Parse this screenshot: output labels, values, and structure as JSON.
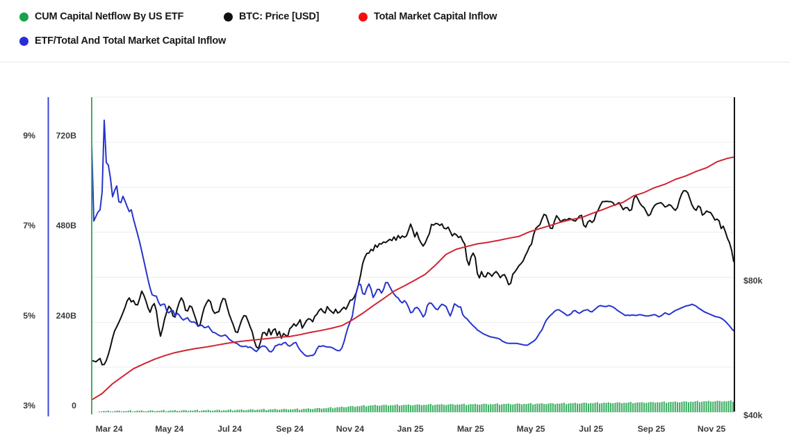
{
  "legend": {
    "rows": [
      {
        "items": [
          {
            "series": "etf_netflow",
            "label": "CUM Capital Netflow By US ETF",
            "color": "#17a34a"
          },
          {
            "series": "btc_price",
            "label": "BTC: Price [USD]",
            "color": "#111111"
          },
          {
            "series": "total_inflow",
            "label": "Total Market Capital Inflow",
            "color": "#f40f0f"
          }
        ]
      },
      {
        "items": [
          {
            "series": "etf_ratio",
            "label": "ETF/Total And Total Market Capital Inflow",
            "color": "#2b2bd9"
          }
        ]
      }
    ]
  },
  "chart_data": {
    "type": "line",
    "title": "",
    "layout_hints": {
      "grid": "horizontal",
      "legend_position": "top",
      "background": "#ffffff",
      "grid_color": "#ededed"
    },
    "x_axis": {
      "unit": "months since Jan 2024 (Jan24=0)",
      "range": [
        1.42,
        22.76
      ],
      "ticks": [
        {
          "m": 2,
          "label": "Mar 24"
        },
        {
          "m": 4,
          "label": "May 24"
        },
        {
          "m": 6,
          "label": "Jul 24"
        },
        {
          "m": 8,
          "label": "Sep 24"
        },
        {
          "m": 10,
          "label": "Nov 24"
        },
        {
          "m": 12,
          "label": "Jan 25"
        },
        {
          "m": 14,
          "label": "Mar 25"
        },
        {
          "m": 16,
          "label": "May 25"
        },
        {
          "m": 18,
          "label": "Jul 25"
        },
        {
          "m": 20,
          "label": "Sep 25"
        },
        {
          "m": 22,
          "label": "Nov 25"
        }
      ]
    },
    "y_axes": {
      "percent": {
        "side": "far-left",
        "axis_color": "#3a45d6",
        "range": [
          3,
          10
        ],
        "grid_values": [
          4,
          5,
          6,
          7,
          8,
          9,
          10
        ],
        "ticks": [
          {
            "v": 3,
            "label": "3%"
          },
          {
            "v": 5,
            "label": "5%"
          },
          {
            "v": 7,
            "label": "7%"
          },
          {
            "v": 9,
            "label": "9%"
          }
        ]
      },
      "billions": {
        "side": "left",
        "axis_color": "#3eae63",
        "range": [
          0,
          840
        ],
        "ticks": [
          {
            "v": 0,
            "label": "0"
          },
          {
            "v": 240,
            "label": "240B"
          },
          {
            "v": 480,
            "label": "480B"
          },
          {
            "v": 720,
            "label": "720B"
          }
        ]
      },
      "usd": {
        "side": "right",
        "axis_color": "#111111",
        "range": [
          39.6,
          133.5
        ],
        "ticks": [
          {
            "v": 40,
            "label": "$40k"
          },
          {
            "v": 80,
            "label": "$80k"
          }
        ]
      }
    },
    "draw_order": [
      "btc_price",
      "etf_ratio",
      "total_inflow"
    ],
    "series": [
      {
        "id": "etf_netflow",
        "name": "CUM Capital Netflow By US ETF",
        "type": "bar",
        "axis": "billions",
        "color": "#3eae63",
        "cumulative_checkpoints_B": [
          [
            1.6,
            2.8
          ],
          [
            3.0,
            3.7
          ],
          [
            4.4,
            4.6
          ],
          [
            5.8,
            5.5
          ],
          [
            7.1,
            7.4
          ],
          [
            8.3,
            8.3
          ],
          [
            9.2,
            11.1
          ],
          [
            9.9,
            14.8
          ],
          [
            10.8,
            18.5
          ],
          [
            11.8,
            19.4
          ],
          [
            12.7,
            20.3
          ],
          [
            14.1,
            21.2
          ],
          [
            15.5,
            22.2
          ],
          [
            16.8,
            23.1
          ],
          [
            18.2,
            24.9
          ],
          [
            19.6,
            25.8
          ],
          [
            21.0,
            27.7
          ],
          [
            22.1,
            29.5
          ],
          [
            22.74,
            29.5
          ]
        ]
      },
      {
        "id": "btc_price",
        "name": "BTC: Price [USD]",
        "type": "line",
        "axis": "usd",
        "color": "#0f0f0f",
        "x_start_month": 1.42,
        "x_step_month": 0.0692,
        "values": [
          55.8,
          55.6,
          55.4,
          55.9,
          56.4,
          54.5,
          54.6,
          55.8,
          57.6,
          59.9,
          62.5,
          64.6,
          65.8,
          67.1,
          68.5,
          70.0,
          71.6,
          73.5,
          74.4,
          73.2,
          73.6,
          72.4,
          72.3,
          74.2,
          76.4,
          75.2,
          73.5,
          71.4,
          70.1,
          71.9,
          72.7,
          70.6,
          66.1,
          63.0,
          65.3,
          68.2,
          70.2,
          71.9,
          71.2,
          69.0,
          68.7,
          71.1,
          73.1,
          74.4,
          73.3,
          70.7,
          70.5,
          72.0,
          71.7,
          69.8,
          68.0,
          66.0,
          66.4,
          69.2,
          71.5,
          72.8,
          73.8,
          73.2,
          70.8,
          69.8,
          70.1,
          70.3,
          72.7,
          74.2,
          74.0,
          71.6,
          69.4,
          67.8,
          66.2,
          64.3,
          64.1,
          66.1,
          67.9,
          69.1,
          69.0,
          67.5,
          65.8,
          64.3,
          61.6,
          59.8,
          59.4,
          61.3,
          64.0,
          64.1,
          63.2,
          65.2,
          63.4,
          64.8,
          65.2,
          63.2,
          64.4,
          62.4,
          63.8,
          63.3,
          62.9,
          65.2,
          65.8,
          66.7,
          66.0,
          66.8,
          67.9,
          65.4,
          66.5,
          67.6,
          68.2,
          68.0,
          67.3,
          68.9,
          69.5,
          70.6,
          71.2,
          70.3,
          69.9,
          71.8,
          70.9,
          70.3,
          69.8,
          71.0,
          69.9,
          70.2,
          71.0,
          71.6,
          71.0,
          72.3,
          73.7,
          73.8,
          74.7,
          76.1,
          78.4,
          81.2,
          84.6,
          86.4,
          87.6,
          87.7,
          88.8,
          88.4,
          90.1,
          89.4,
          90.5,
          90.4,
          91.0,
          90.8,
          91.3,
          91.8,
          91.4,
          92.5,
          91.5,
          92.9,
          92.1,
          92.8,
          92.4,
          92.8,
          94.5,
          96.3,
          94.6,
          92.5,
          93.9,
          91.9,
          90.7,
          89.8,
          90.7,
          92.2,
          93.5,
          96.2,
          96.0,
          96.5,
          96.4,
          95.9,
          96.4,
          95.1,
          94.9,
          95.4,
          94.1,
          92.8,
          93.5,
          93.1,
          92.3,
          92.7,
          91.3,
          90.3,
          85.7,
          84.1,
          86.6,
          87.7,
          86.4,
          81.7,
          80.3,
          82.2,
          80.8,
          80.6,
          81.9,
          81.5,
          80.8,
          81.7,
          82.2,
          81.5,
          80.4,
          81.1,
          81.3,
          80.1,
          78.3,
          78.7,
          81.4,
          82.1,
          83.0,
          84.0,
          84.6,
          85.4,
          86.9,
          88.1,
          89.6,
          90.4,
          93.2,
          95.0,
          95.6,
          96.1,
          97.8,
          99.2,
          98.9,
          97.0,
          95.1,
          95.0,
          97.2,
          98.8,
          98.0,
          97.0,
          97.5,
          97.7,
          97.5,
          98.0,
          97.8,
          97.4,
          97.2,
          97.9,
          98.7,
          98.9,
          96.0,
          95.4,
          96.9,
          97.4,
          96.8,
          97.4,
          99.5,
          100.5,
          101.9,
          103.0,
          103.0,
          103.1,
          103.0,
          103.0,
          102.7,
          101.9,
          102.3,
          102.7,
          101.7,
          100.6,
          101.2,
          101.2,
          100.3,
          100.6,
          103.7,
          104.9,
          103.8,
          102.5,
          101.7,
          101.2,
          100.0,
          98.8,
          99.2,
          100.8,
          101.8,
          102.3,
          102.5,
          102.7,
          102.2,
          101.4,
          101.6,
          102.1,
          101.8,
          101.0,
          100.4,
          101.2,
          103.5,
          105.2,
          106.2,
          106.2,
          105.6,
          103.8,
          102.0,
          100.9,
          100.4,
          101.7,
          101.3,
          99.0,
          99.4,
          100.2,
          99.9,
          99.7,
          98.7,
          97.5,
          97.8,
          97.3,
          95.0,
          95.7,
          94.1,
          92.1,
          90.8,
          88.6,
          85.2
        ]
      },
      {
        "id": "total_inflow",
        "name": "Total Market Capital Inflow",
        "type": "line",
        "axis": "billions",
        "color": "#cf2431",
        "x_start_month": 1.42,
        "x_step_month": 0.346,
        "values": [
          33,
          50,
          76,
          96,
          116,
          129,
          141,
          151,
          159,
          165,
          170,
          174,
          179,
          184,
          188,
          191,
          194,
          197,
          200,
          202,
          207,
          213,
          218,
          224,
          231,
          246,
          264,
          284,
          303,
          323,
          337,
          352,
          368,
          393,
          421,
          435,
          442,
          449,
          453,
          458,
          464,
          469,
          481,
          490,
          498,
          507,
          514,
          519,
          530,
          540,
          551,
          560,
          577,
          586,
          599,
          608,
          621,
          630,
          642,
          652,
          668,
          677,
          681
        ]
      },
      {
        "id": "etf_ratio",
        "name": "ETF/Total And Total Market Capital Inflow",
        "type": "line",
        "axis": "percent",
        "color": "#2633cd",
        "x_start_month": 1.42,
        "x_step_month": 0.0692,
        "values": [
          8.97,
          7.25,
          7.35,
          7.45,
          7.5,
          7.9,
          9.49,
          8.55,
          8.49,
          8.2,
          7.79,
          7.93,
          8.03,
          7.68,
          7.66,
          7.8,
          7.69,
          7.57,
          7.46,
          7.5,
          7.3,
          7.13,
          6.96,
          6.78,
          6.58,
          6.37,
          6.16,
          5.95,
          5.76,
          5.61,
          5.59,
          5.58,
          5.45,
          5.37,
          5.4,
          5.4,
          5.25,
          5.21,
          5.25,
          5.26,
          5.14,
          5.2,
          5.16,
          5.09,
          5.05,
          5.08,
          5.1,
          5.03,
          5.0,
          5.01,
          4.98,
          4.91,
          4.93,
          4.93,
          4.88,
          4.89,
          4.91,
          4.84,
          4.78,
          4.77,
          4.74,
          4.71,
          4.69,
          4.7,
          4.72,
          4.68,
          4.62,
          4.59,
          4.56,
          4.54,
          4.52,
          4.48,
          4.46,
          4.46,
          4.47,
          4.44,
          4.45,
          4.42,
          4.38,
          4.35,
          4.4,
          4.45,
          4.47,
          4.47,
          4.43,
          4.36,
          4.34,
          4.38,
          4.47,
          4.49,
          4.51,
          4.5,
          4.54,
          4.55,
          4.49,
          4.47,
          4.5,
          4.54,
          4.55,
          4.45,
          4.38,
          4.33,
          4.28,
          4.25,
          4.25,
          4.26,
          4.26,
          4.3,
          4.4,
          4.47,
          4.46,
          4.48,
          4.46,
          4.45,
          4.45,
          4.44,
          4.42,
          4.39,
          4.37,
          4.37,
          4.43,
          4.56,
          4.74,
          4.89,
          5.01,
          5.13,
          5.42,
          5.68,
          5.84,
          5.84,
          5.64,
          5.62,
          5.76,
          5.85,
          5.74,
          5.55,
          5.63,
          5.73,
          5.73,
          5.65,
          5.73,
          5.88,
          5.88,
          5.79,
          5.7,
          5.63,
          5.57,
          5.54,
          5.47,
          5.43,
          5.48,
          5.43,
          5.33,
          5.21,
          5.23,
          5.31,
          5.33,
          5.29,
          5.21,
          5.12,
          5.18,
          5.37,
          5.43,
          5.42,
          5.36,
          5.3,
          5.28,
          5.35,
          5.4,
          5.38,
          5.35,
          5.24,
          5.14,
          5.26,
          5.41,
          5.38,
          5.34,
          5.34,
          5.17,
          5.11,
          5.08,
          5.02,
          4.97,
          4.92,
          4.88,
          4.83,
          4.8,
          4.77,
          4.74,
          4.72,
          4.7,
          4.68,
          4.67,
          4.66,
          4.65,
          4.64,
          4.62,
          4.58,
          4.56,
          4.54,
          4.53,
          4.53,
          4.53,
          4.53,
          4.53,
          4.52,
          4.51,
          4.5,
          4.49,
          4.49,
          4.52,
          4.55,
          4.58,
          4.62,
          4.69,
          4.77,
          4.83,
          4.94,
          5.04,
          5.1,
          5.15,
          5.19,
          5.24,
          5.27,
          5.28,
          5.25,
          5.22,
          5.19,
          5.15,
          5.16,
          5.19,
          5.25,
          5.26,
          5.22,
          5.2,
          5.23,
          5.26,
          5.27,
          5.28,
          5.24,
          5.23,
          5.27,
          5.31,
          5.35,
          5.37,
          5.36,
          5.35,
          5.35,
          5.37,
          5.36,
          5.34,
          5.31,
          5.27,
          5.24,
          5.21,
          5.18,
          5.15,
          5.16,
          5.15,
          5.16,
          5.16,
          5.15,
          5.16,
          5.17,
          5.16,
          5.15,
          5.14,
          5.14,
          5.15,
          5.16,
          5.17,
          5.15,
          5.12,
          5.14,
          5.17,
          5.21,
          5.19,
          5.17,
          5.2,
          5.23,
          5.26,
          5.28,
          5.3,
          5.32,
          5.34,
          5.36,
          5.37,
          5.38,
          5.4,
          5.38,
          5.36,
          5.32,
          5.29,
          5.26,
          5.23,
          5.21,
          5.19,
          5.17,
          5.15,
          5.13,
          5.12,
          5.11,
          5.09,
          5.06,
          5.02,
          4.97,
          4.92,
          4.86,
          4.81
        ]
      }
    ]
  }
}
